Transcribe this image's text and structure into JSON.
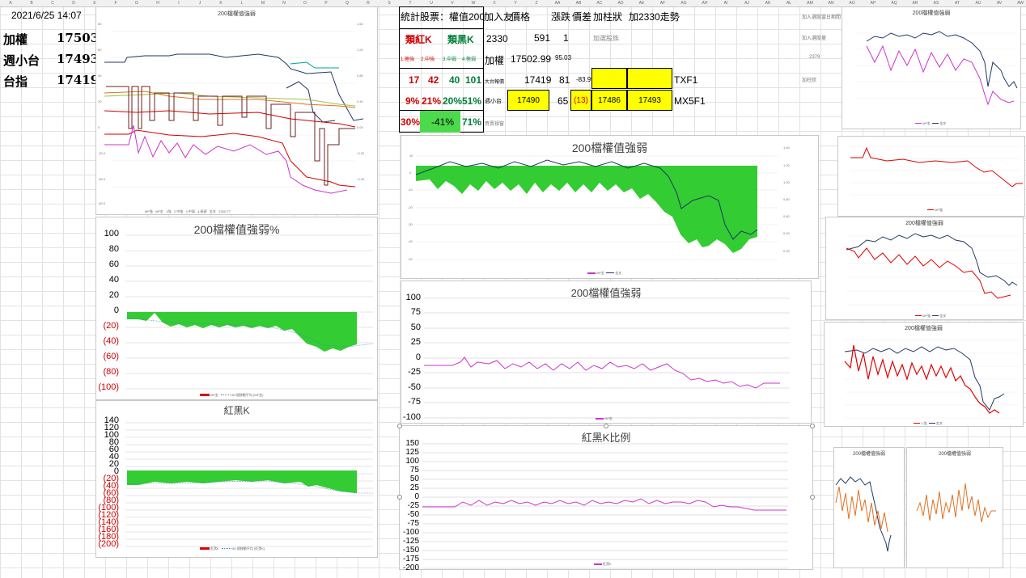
{
  "sheet": {
    "columns": [
      "A",
      "B",
      "C",
      "D",
      "E",
      "F",
      "G",
      "H",
      "I",
      "J",
      "K",
      "L",
      "M",
      "N",
      "O",
      "P",
      "Q",
      "R",
      "S",
      "T",
      "U",
      "V",
      "W",
      "X",
      "Y",
      "Z",
      "AA",
      "AB",
      "AC",
      "AD",
      "AE",
      "AF",
      "AG",
      "AH",
      "AI",
      "AJ",
      "AK",
      "AL",
      "AM",
      "AN",
      "AO",
      "AP",
      "AQ",
      "AR",
      "AS",
      "AT",
      "AU",
      "AV",
      "AW",
      "AX"
    ]
  },
  "left": {
    "datetime": "2021/6/25 14:07",
    "rows": [
      {
        "label": "加權",
        "value": "17503"
      },
      {
        "label": "週小台",
        "value": "17493"
      },
      {
        "label": "台指",
        "value": "17419"
      }
    ]
  },
  "stats": {
    "header": "統計股票：權值200",
    "header_col2": "加入友",
    "col_price": "價格",
    "col_change": "漲跌",
    "col_diff": "價差",
    "col_bar": "加柱狀",
    "col_trend": "加2330走勢",
    "red_k": "類紅K",
    "black_k": "類黑K",
    "sub_labels": [
      "1.極強",
      "2.中強",
      "3.中弱",
      "4.極弱"
    ],
    "counts": [
      "17",
      "42",
      "40",
      "101"
    ],
    "percents": [
      "9%",
      "21%",
      "20%",
      "51%"
    ],
    "sum_red": "30%",
    "sum_diff": "-41%",
    "sum_black": "71%",
    "row_2330": {
      "code": "2330",
      "price": "591",
      "change": "1",
      "note": "加選股族"
    },
    "row_taiex": {
      "label": "加權",
      "price": "17502.99",
      "change": "95.03"
    },
    "row_tx": {
      "label": "大台報價",
      "price": "17419",
      "change": "81",
      "diff": "-83.99",
      "name": "TXF1"
    },
    "row_mx": {
      "label": "週小台",
      "bid": "17490",
      "change": "65",
      "diff": "(13)",
      "price2": "17486",
      "price3": "17493",
      "name": "MX5F1"
    },
    "row_extra": "買賣視窗"
  },
  "right_notes": [
    "加入選股當日期間",
    "加入選股量",
    "2379",
    "加柱狀"
  ],
  "charts": {
    "top_mini_title": "200檔權值強弱",
    "top_mini_legend": [
      "MF強",
      "MF金",
      "1強",
      "2.中強",
      "3.中弱",
      "4.極弱",
      "金叉",
      "2330.TT"
    ],
    "pct_title": "200檔權值強弱%",
    "pct_yticks": [
      "100",
      "80",
      "60",
      "40",
      "20",
      "0",
      "(20)",
      "(40)",
      "(60)",
      "(80)",
      "(100)"
    ],
    "pct_legend": [
      "MF金",
      "80 個移動平均 (MF金)"
    ],
    "rk_title": "紅黑K",
    "rk_yticks": [
      "140",
      "120",
      "100",
      "80",
      "60",
      "40",
      "20",
      "0",
      "(20)",
      "(40)",
      "(60)",
      "(80)",
      "(100)",
      "(120)",
      "(140)",
      "(160)",
      "(180)",
      "(200)"
    ],
    "rk_legend": [
      "紅黑K",
      "80 個移動平均 (紅黑K)"
    ],
    "big_title": "200檔權值強弱",
    "big_legend": [
      "MF金",
      "金叉"
    ],
    "mid_title": "200檔權值強弱",
    "mid_yticks": [
      "100",
      "75",
      "50",
      "25",
      "0",
      "-25",
      "-50",
      "-75",
      "-100"
    ],
    "mid_legend": "MF金",
    "ratio_title": "紅黑K比例",
    "ratio_yticks": [
      "150",
      "125",
      "100",
      "75",
      "50",
      "25",
      "0",
      "-25",
      "-50",
      "-75",
      "-100",
      "-125",
      "-150",
      "-175",
      "-200"
    ],
    "ratio_legend": "紅黑K",
    "r1_title": "200檔權值強弱",
    "r1_legend": [
      "MF金",
      "金叉"
    ],
    "r2_legend": "MF強",
    "r3_title": "200檔權值強弱",
    "r3_legend": [
      "MF強",
      "金叉"
    ],
    "r4_title": "200檔權值強弱",
    "r4_legend": [
      "1.強",
      "金叉"
    ],
    "r5a_title": "200檔權值強弱",
    "r5b_title": "200檔權值強弱"
  },
  "colors": {
    "green_fill": "#33cc33",
    "navy": "#1f3864",
    "magenta": "#cc33cc",
    "red": "#e00000",
    "orange": "#e07020",
    "yellow": "#ffff00"
  }
}
